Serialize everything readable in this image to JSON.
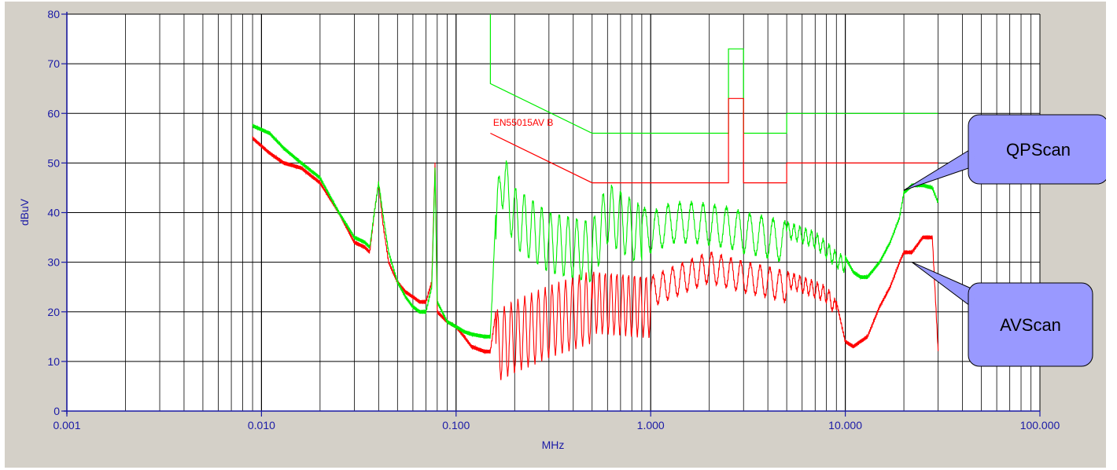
{
  "chart_data": {
    "type": "line",
    "title": "",
    "xlabel": "MHz",
    "ylabel": "dBuV",
    "xscale": "log",
    "xlim": [
      0.001,
      100
    ],
    "ylim": [
      0,
      80
    ],
    "grid": true,
    "xticks": [
      {
        "value": 0.001,
        "label": "0.001"
      },
      {
        "value": 0.01,
        "label": "0.010"
      },
      {
        "value": 0.1,
        "label": "0.100"
      },
      {
        "value": 1,
        "label": "1.000"
      },
      {
        "value": 10,
        "label": "10.000"
      },
      {
        "value": 100,
        "label": "100.000"
      }
    ],
    "yticks": [
      {
        "value": 0,
        "label": "0"
      },
      {
        "value": 10,
        "label": "10"
      },
      {
        "value": 20,
        "label": "20"
      },
      {
        "value": 30,
        "label": "30"
      },
      {
        "value": 40,
        "label": "40"
      },
      {
        "value": 50,
        "label": "50"
      },
      {
        "value": 60,
        "label": "60"
      },
      {
        "value": 70,
        "label": "70"
      },
      {
        "value": 80,
        "label": "80"
      }
    ],
    "limit_lines": [
      {
        "label": "",
        "color": "#00ee00",
        "points": [
          [
            0.15,
            80
          ],
          [
            0.15,
            66
          ],
          [
            0.5,
            56
          ],
          [
            2.51,
            56
          ],
          [
            2.51,
            73
          ],
          [
            3.0,
            73
          ],
          [
            3.0,
            56
          ],
          [
            5.0,
            56
          ],
          [
            5.0,
            60
          ],
          [
            30,
            60
          ]
        ]
      },
      {
        "label": "EN55015AV B",
        "color": "#ff0000",
        "label_at": [
          0.155,
          57.5
        ],
        "points": [
          [
            0.15,
            56
          ],
          [
            0.5,
            46
          ],
          [
            2.51,
            46
          ],
          [
            2.51,
            63
          ],
          [
            3.0,
            63
          ],
          [
            3.0,
            46
          ],
          [
            5.0,
            46
          ],
          [
            5.0,
            50
          ],
          [
            30,
            50
          ]
        ]
      }
    ],
    "series": [
      {
        "name": "QPScan",
        "color": "#00ee00",
        "points": [
          [
            0.009,
            57.5
          ],
          [
            0.011,
            56
          ],
          [
            0.013,
            53
          ],
          [
            0.016,
            50
          ],
          [
            0.02,
            47
          ],
          [
            0.025,
            40
          ],
          [
            0.03,
            35
          ],
          [
            0.034,
            34
          ],
          [
            0.036,
            33
          ],
          [
            0.038,
            40
          ],
          [
            0.04,
            46
          ],
          [
            0.042,
            40
          ],
          [
            0.045,
            32
          ],
          [
            0.05,
            26
          ],
          [
            0.055,
            23
          ],
          [
            0.06,
            21
          ],
          [
            0.065,
            20
          ],
          [
            0.07,
            20
          ],
          [
            0.075,
            25
          ],
          [
            0.078,
            49
          ],
          [
            0.08,
            22
          ],
          [
            0.09,
            18
          ],
          [
            0.1,
            17
          ],
          [
            0.11,
            16
          ],
          [
            0.12,
            15.5
          ],
          [
            0.14,
            15
          ],
          [
            0.15,
            15
          ],
          [
            0.16,
            40
          ],
          [
            0.17,
            54
          ],
          [
            0.2,
            45
          ],
          [
            0.3,
            40
          ],
          [
            0.5,
            38
          ],
          [
            0.6,
            46
          ],
          [
            1.0,
            40
          ],
          [
            1.3,
            42
          ],
          [
            1.7,
            42
          ],
          [
            2.5,
            41
          ],
          [
            3.0,
            40
          ],
          [
            4.0,
            39
          ],
          [
            5.0,
            38
          ],
          [
            6.0,
            37
          ],
          [
            7.0,
            36
          ],
          [
            8.0,
            34
          ],
          [
            9.0,
            32
          ],
          [
            10.0,
            31
          ],
          [
            11.0,
            28
          ],
          [
            12.0,
            27
          ],
          [
            13.0,
            27
          ],
          [
            15.0,
            30
          ],
          [
            17.0,
            34
          ],
          [
            19.0,
            39
          ],
          [
            20.0,
            44
          ],
          [
            22.0,
            45.5
          ],
          [
            25.0,
            45.5
          ],
          [
            28.0,
            45
          ],
          [
            30.0,
            42
          ]
        ],
        "oscillations": [
          [
            0.16,
            0.9,
            12,
            0.045
          ],
          [
            0.9,
            5.0,
            8,
            0.06
          ],
          [
            5.0,
            10.0,
            3,
            0.03
          ]
        ]
      },
      {
        "name": "AVScan",
        "color": "#ff0000",
        "points": [
          [
            0.009,
            55
          ],
          [
            0.011,
            52
          ],
          [
            0.013,
            50
          ],
          [
            0.016,
            49
          ],
          [
            0.02,
            46
          ],
          [
            0.025,
            40
          ],
          [
            0.03,
            34
          ],
          [
            0.034,
            33
          ],
          [
            0.036,
            32
          ],
          [
            0.038,
            40
          ],
          [
            0.04,
            46
          ],
          [
            0.042,
            38
          ],
          [
            0.045,
            30
          ],
          [
            0.05,
            26
          ],
          [
            0.055,
            24
          ],
          [
            0.06,
            23
          ],
          [
            0.065,
            22
          ],
          [
            0.07,
            22
          ],
          [
            0.075,
            26
          ],
          [
            0.078,
            50
          ],
          [
            0.08,
            20
          ],
          [
            0.09,
            18
          ],
          [
            0.1,
            17
          ],
          [
            0.11,
            15
          ],
          [
            0.12,
            13
          ],
          [
            0.14,
            12
          ],
          [
            0.15,
            12
          ],
          [
            0.16,
            20
          ],
          [
            0.2,
            22
          ],
          [
            0.3,
            25
          ],
          [
            0.5,
            28
          ],
          [
            1.0,
            27
          ],
          [
            1.5,
            30
          ],
          [
            2.0,
            32
          ],
          [
            3.0,
            30
          ],
          [
            4.0,
            29
          ],
          [
            5.0,
            28
          ],
          [
            6.0,
            27
          ],
          [
            7.0,
            26
          ],
          [
            8.0,
            25
          ],
          [
            9.0,
            22
          ],
          [
            10.0,
            14
          ],
          [
            11.0,
            13
          ],
          [
            13.0,
            15
          ],
          [
            15.0,
            21
          ],
          [
            17.0,
            25
          ],
          [
            19.0,
            30
          ],
          [
            20.0,
            32
          ],
          [
            22.0,
            32
          ],
          [
            25.0,
            35
          ],
          [
            28.0,
            35
          ],
          [
            30.0,
            12
          ]
        ],
        "oscillations": [
          [
            0.16,
            0.5,
            14,
            0.035
          ],
          [
            0.5,
            1.0,
            12,
            0.03
          ],
          [
            1.0,
            5.0,
            6,
            0.05
          ],
          [
            5.0,
            9.0,
            3,
            0.03
          ]
        ]
      }
    ],
    "callouts": [
      {
        "label": "QPScan",
        "series": "QPScan"
      },
      {
        "label": "AVScan",
        "series": "AVScan"
      }
    ]
  }
}
